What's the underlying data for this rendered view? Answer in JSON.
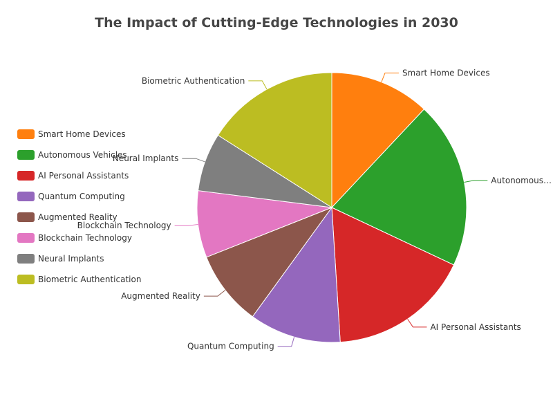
{
  "chart_data": {
    "type": "pie",
    "title": "The Impact of Cutting-Edge Technologies in 2030",
    "legend_position": "left",
    "categories": [
      "Smart Home Devices",
      "Autonomous Vehicles",
      "AI Personal Assistants",
      "Quantum Computing",
      "Augmented Reality",
      "Blockchain Technology",
      "Neural Implants",
      "Biometric Authentication"
    ],
    "values": [
      12,
      20,
      17,
      11,
      9,
      8,
      7,
      16
    ],
    "colors": [
      "#ff7f0e",
      "#2ca02c",
      "#d62728",
      "#9467bd",
      "#8c564b",
      "#e377c2",
      "#7f7f7f",
      "#bcbd22"
    ],
    "slice_labels": [
      "Smart Home Devices",
      "Autonomous…",
      "AI Personal Assistants",
      "Quantum Computing",
      "Augmented Reality",
      "Blockchain Technology",
      "Neural Implants",
      "Biometric Authentication"
    ]
  }
}
